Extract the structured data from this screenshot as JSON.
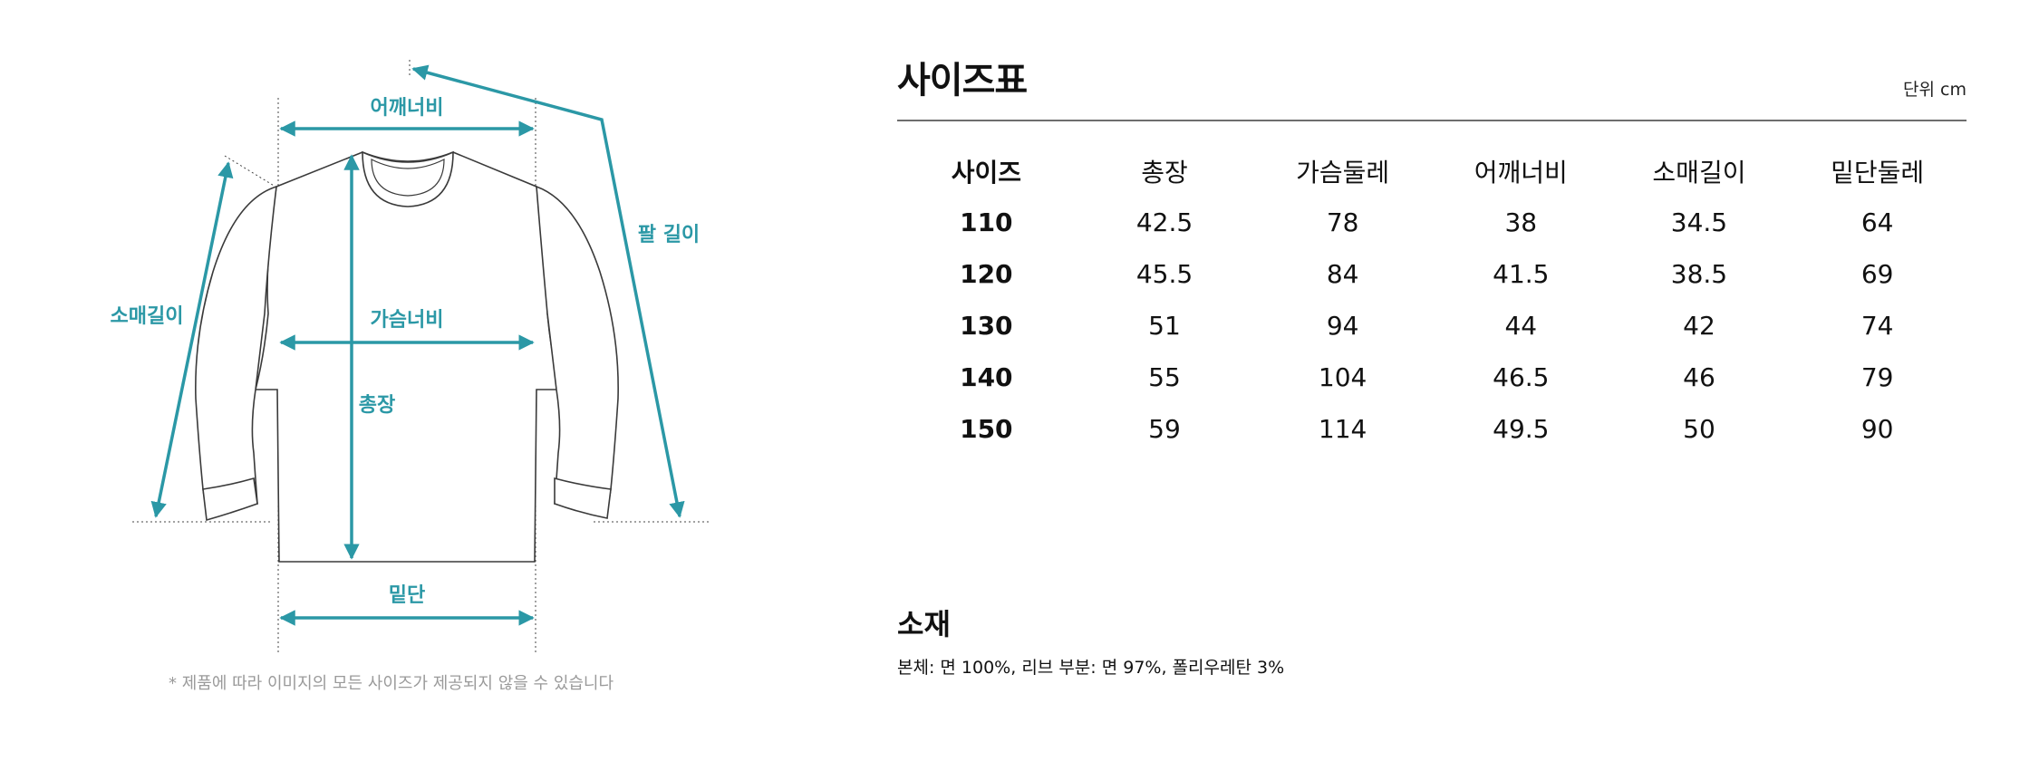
{
  "diagram": {
    "labels": {
      "shoulder": "어깨너비",
      "chest": "가슴너비",
      "length": "총장",
      "hem": "밑단",
      "sleeve": "소매길이",
      "arm": "팔 길이"
    },
    "accent_color": "#2b98a6",
    "note": "* 제품에 따라 이미지의 모든 사이즈가 제공되지 않을 수 있습니다"
  },
  "size_chart": {
    "title": "사이즈표",
    "unit": "단위 cm",
    "headers": [
      "사이즈",
      "총장",
      "가슴둘레",
      "어깨너비",
      "소매길이",
      "밑단둘레"
    ],
    "rows": [
      [
        "110",
        "42.5",
        "78",
        "38",
        "34.5",
        "64"
      ],
      [
        "120",
        "45.5",
        "84",
        "41.5",
        "38.5",
        "69"
      ],
      [
        "130",
        "51",
        "94",
        "44",
        "42",
        "74"
      ],
      [
        "140",
        "55",
        "104",
        "46.5",
        "46",
        "79"
      ],
      [
        "150",
        "59",
        "114",
        "49.5",
        "50",
        "90"
      ]
    ]
  },
  "material": {
    "title": "소재",
    "text": "본체: 면 100%, 리브 부분: 면 97%, 폴리우레탄 3%"
  }
}
